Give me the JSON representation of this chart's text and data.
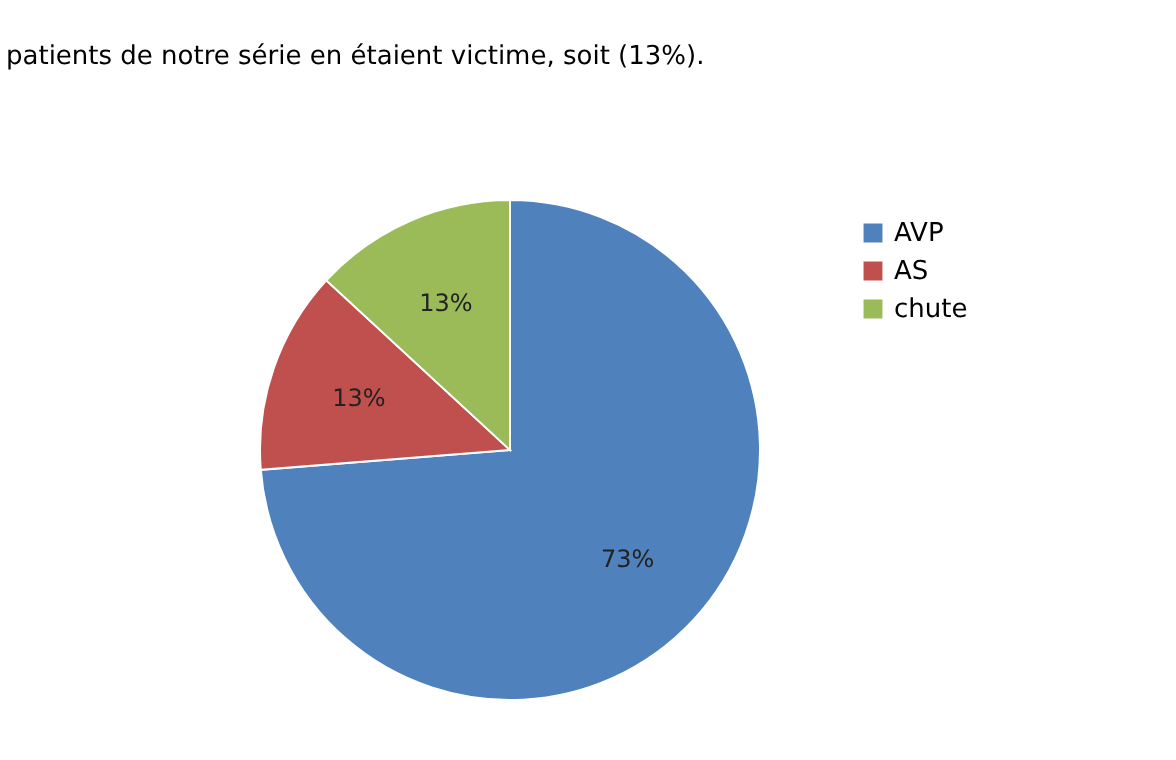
{
  "chart_data": {
    "type": "pie",
    "categories": [
      "AVP",
      "AS",
      "chute"
    ],
    "values": [
      73,
      13,
      13
    ],
    "colors": [
      "#4f81bd",
      "#c0504d",
      "#9bbb59"
    ],
    "value_labels": [
      "73%",
      "13%",
      "13%"
    ],
    "legend": "right",
    "annotations": [
      "patients de notre série en étaient victime, soit (13%)."
    ]
  }
}
